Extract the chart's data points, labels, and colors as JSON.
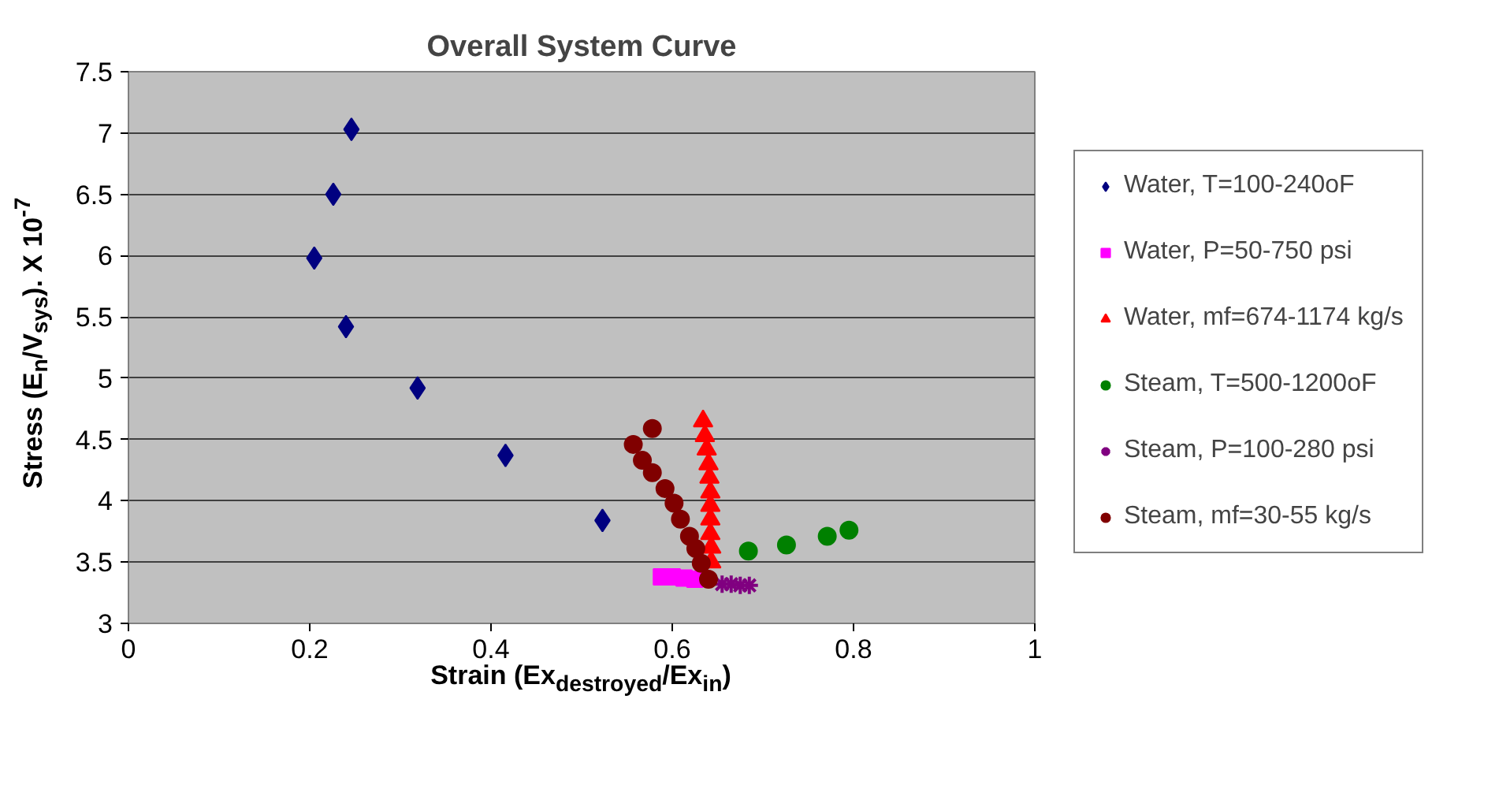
{
  "chart_data": {
    "type": "scatter",
    "title": "Overall System Curve",
    "xlabel": "Strain (Ex$_{destroyed}$/Ex$_{in}$)",
    "ylabel": "Stress (E$_{n}$/V$_{sys}$). X 10$^{-7}$",
    "xlim": [
      0,
      1
    ],
    "xticks": [
      0,
      0.2,
      0.4,
      0.6,
      0.8,
      1
    ],
    "ylim": [
      3,
      7.5
    ],
    "yticks": [
      3,
      3.5,
      4,
      4.5,
      5,
      5.5,
      6,
      6.5,
      7,
      7.5
    ],
    "grid": "y",
    "legend": "right",
    "series": [
      {
        "name": "Water, T=100-240oF",
        "color": "#000080",
        "marker": "diamond",
        "x": [
          0.246,
          0.226,
          0.205,
          0.24,
          0.319,
          0.416,
          0.523
        ],
        "values": [
          7.03,
          6.5,
          5.98,
          5.42,
          4.92,
          4.37,
          3.84
        ]
      },
      {
        "name": "Water, P=50-750 psi",
        "color": "#ff00ff",
        "marker": "square",
        "x": [
          0.588,
          0.6,
          0.613,
          0.625
        ],
        "values": [
          3.38,
          3.38,
          3.37,
          3.36
        ]
      },
      {
        "name": "Water, mf=674-1174 kg/s",
        "color": "#ff0000",
        "marker": "triangle",
        "x": [
          0.634,
          0.636,
          0.638,
          0.64,
          0.641,
          0.642,
          0.642,
          0.642,
          0.642,
          0.643,
          0.643
        ],
        "values": [
          4.65,
          4.53,
          4.42,
          4.3,
          4.19,
          4.07,
          3.96,
          3.85,
          3.73,
          3.62,
          3.5
        ]
      },
      {
        "name": "Steam, T=500-1200oF",
        "color": "#008000",
        "marker": "circle",
        "x": [
          0.684,
          0.726,
          0.771,
          0.795
        ],
        "values": [
          3.59,
          3.64,
          3.71,
          3.76
        ]
      },
      {
        "name": "Steam, P=100-280 psi",
        "color": "#800080",
        "marker": "cross",
        "x": [
          0.655,
          0.665,
          0.675,
          0.685
        ],
        "values": [
          3.32,
          3.32,
          3.31,
          3.31
        ]
      },
      {
        "name": "Steam, mf=30-55 kg/s",
        "color": "#800000",
        "marker": "circle",
        "x": [
          0.578,
          0.557,
          0.567,
          0.578,
          0.592,
          0.602,
          0.609,
          0.619,
          0.626,
          0.632,
          0.64
        ],
        "values": [
          4.59,
          4.46,
          4.33,
          4.23,
          4.1,
          3.98,
          3.85,
          3.71,
          3.61,
          3.49,
          3.36
        ]
      }
    ]
  }
}
